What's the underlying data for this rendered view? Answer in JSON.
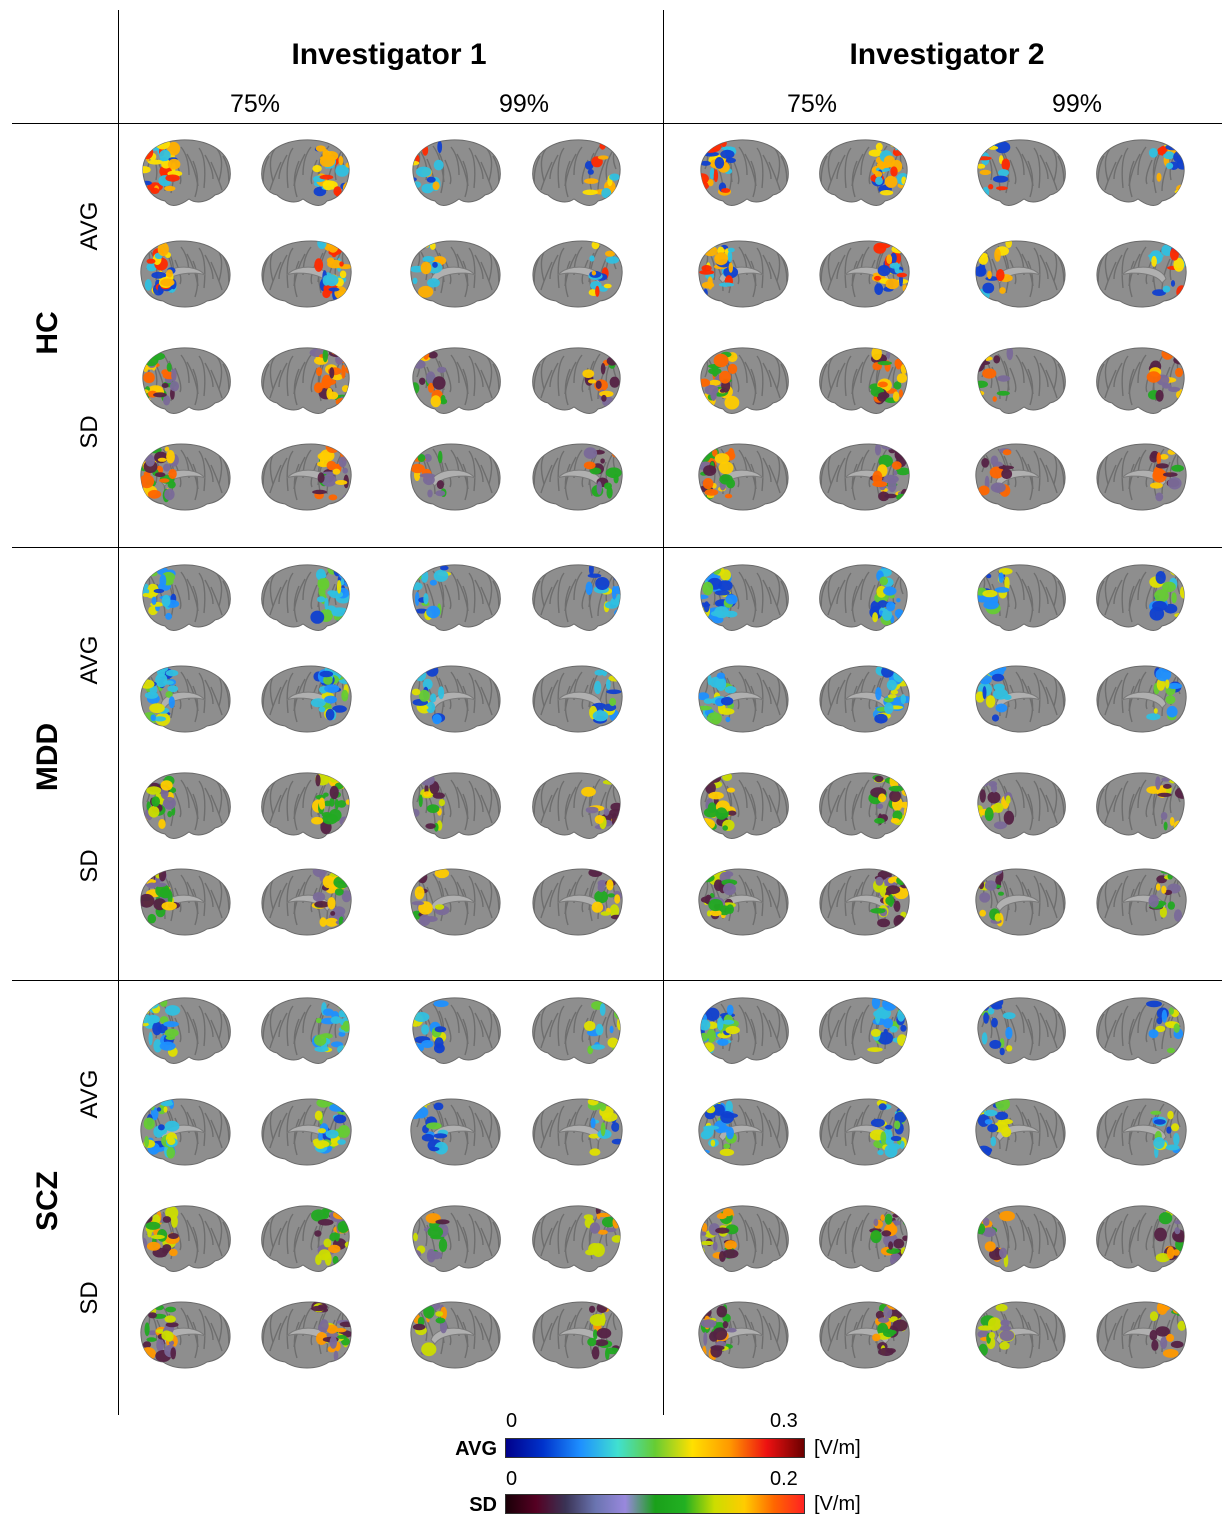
{
  "columns": {
    "investigators": [
      "Investigator 1",
      "Investigator 2"
    ],
    "percentiles": [
      "75%",
      "99%"
    ]
  },
  "groups": [
    "HC",
    "MDD",
    "SCZ"
  ],
  "rows": [
    "AVG",
    "SD"
  ],
  "colorbars": {
    "avg": {
      "label": "AVG",
      "min": "0",
      "max": "0.3",
      "unit": "[V/m]",
      "colors": [
        "#00008b",
        "#0033cc",
        "#1e90ff",
        "#40e0d0",
        "#66cc33",
        "#ffe000",
        "#ff9900",
        "#ee1111",
        "#6b0000"
      ]
    },
    "sd": {
      "label": "SD",
      "min": "0",
      "max": "0.2",
      "unit": "[V/m]",
      "colors": [
        "#1a0008",
        "#550022",
        "#3a3355",
        "#6a74b0",
        "#9988dd",
        "#1aa01a",
        "#22b022",
        "#ccdd00",
        "#ffcc00",
        "#ff6600",
        "#ff2222"
      ]
    }
  },
  "colors": {
    "cortex": "#8e8e8e",
    "cortex_dark": "#6a6a6a"
  }
}
